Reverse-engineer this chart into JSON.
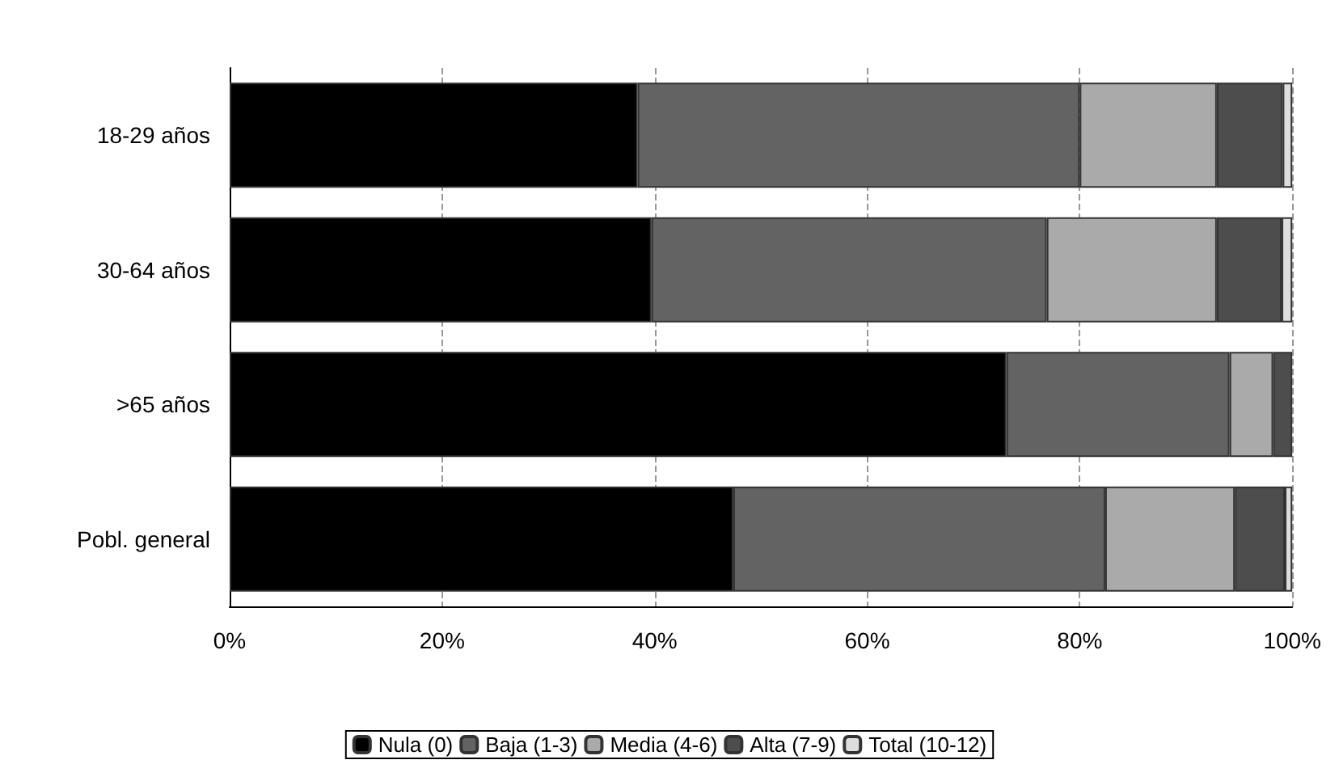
{
  "chart_data": {
    "type": "bar",
    "orientation": "horizontal",
    "stacked": true,
    "categories": [
      "18-29 años",
      "30-64 años",
      ">65 años",
      "Pobl. general"
    ],
    "series": [
      {
        "name": "Nula (0)",
        "color": "#000000",
        "values": [
          38.4,
          39.7,
          73.1,
          47.4
        ]
      },
      {
        "name": "Baja (1-3)",
        "color": "#636363",
        "values": [
          41.6,
          37.2,
          21.0,
          35.0
        ]
      },
      {
        "name": "Media (4-6)",
        "color": "#aaaaaa",
        "values": [
          12.9,
          16.0,
          4.1,
          12.2
        ]
      },
      {
        "name": "Alta (7-9)",
        "color": "#4d4d4d",
        "values": [
          6.2,
          6.1,
          1.8,
          4.7
        ]
      },
      {
        "name": "Total (10-12)",
        "color": "#dddddd",
        "values": [
          0.9,
          1.0,
          0,
          0.7
        ]
      }
    ],
    "xlim": [
      0,
      100
    ],
    "xticks": [
      {
        "value": 0,
        "label": "0%"
      },
      {
        "value": 20,
        "label": "20%"
      },
      {
        "value": 40,
        "label": "40%"
      },
      {
        "value": 60,
        "label": "60%"
      },
      {
        "value": 80,
        "label": "80%"
      },
      {
        "value": 100,
        "label": "100%"
      }
    ],
    "grid": "x",
    "legend": "bottom"
  }
}
